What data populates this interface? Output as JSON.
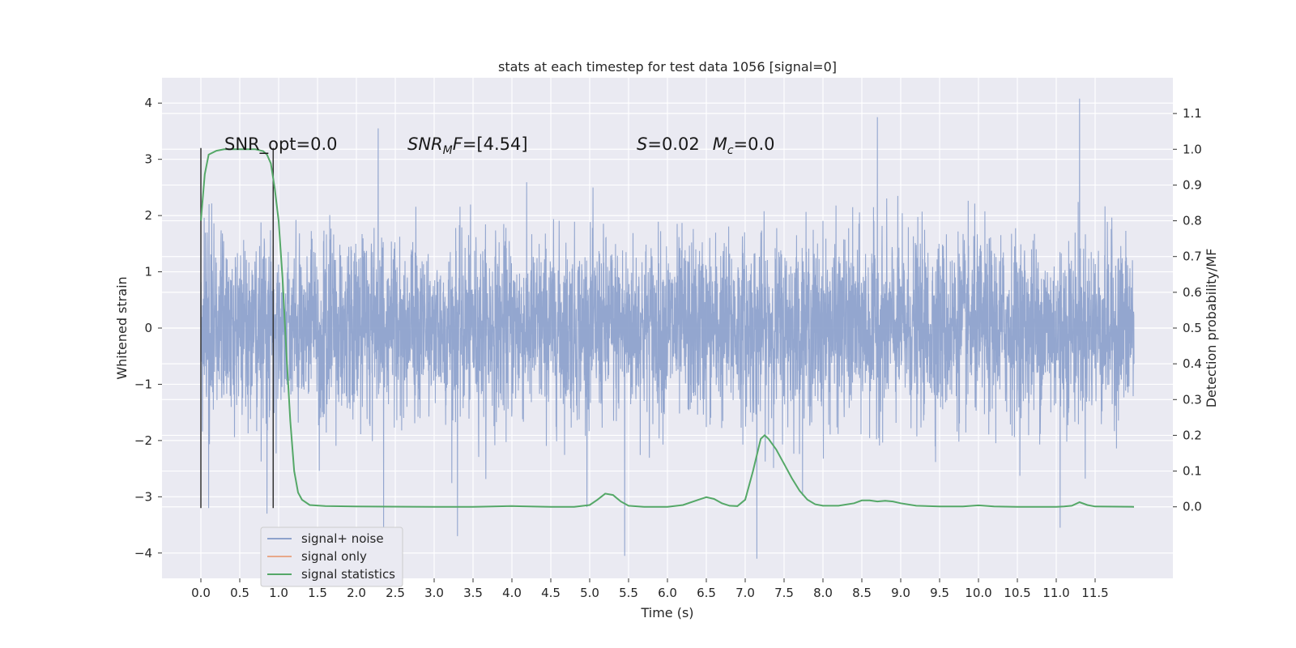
{
  "chart_data": {
    "type": "line",
    "title": "stats at each timestep for test data 1056 [signal=0]",
    "xlabel": "Time (s)",
    "ylabel": "Whitened strain",
    "y2label": "Detection probability/MF",
    "xlim": [
      -0.5,
      12.5
    ],
    "ylim": [
      -4.45,
      4.45
    ],
    "y2lim": [
      -0.2,
      1.2
    ],
    "x_ticks": [
      0.0,
      0.5,
      1.0,
      1.5,
      2.0,
      2.5,
      3.0,
      3.5,
      4.0,
      4.5,
      5.0,
      5.5,
      6.0,
      6.5,
      7.0,
      7.5,
      8.0,
      8.5,
      9.0,
      9.5,
      10.0,
      10.5,
      11.0,
      11.5
    ],
    "x_tick_labels": [
      "0.0",
      "0.5",
      "1.0",
      "1.5",
      "2.0",
      "2.5",
      "3.0",
      "3.5",
      "4.0",
      "4.5",
      "5.0",
      "5.5",
      "6.0",
      "6.5",
      "7.0",
      "7.5",
      "8.0",
      "8.5",
      "9.0",
      "9.5",
      "10.0",
      "10.5",
      "11.0",
      "11.5"
    ],
    "y_ticks": [
      -4,
      -3,
      -2,
      -1,
      0,
      1,
      2,
      3,
      4
    ],
    "y_tick_labels": [
      "−4",
      "−3",
      "−2",
      "−1",
      "0",
      "1",
      "2",
      "3",
      "4"
    ],
    "y2_ticks": [
      0.0,
      0.1,
      0.2,
      0.3,
      0.4,
      0.5,
      0.6,
      0.7,
      0.8,
      0.9,
      1.0,
      1.1
    ],
    "y2_tick_labels": [
      "0.0",
      "0.1",
      "0.2",
      "0.3",
      "0.4",
      "0.5",
      "0.6",
      "0.7",
      "0.8",
      "0.9",
      "1.0",
      "1.1"
    ],
    "grid": true,
    "legend_position": "lower-left",
    "series": [
      {
        "name": "signal+ noise",
        "axis": "left",
        "color": "#8ea2cc",
        "x_range": [
          0.0,
          12.0
        ],
        "typical_envelope": [
          -1.9,
          1.9
        ],
        "extreme_excursions": [
          {
            "x": 0.1,
            "y": -3.2
          },
          {
            "x": 0.85,
            "y": -3.3
          },
          {
            "x": 2.28,
            "y": 3.55
          },
          {
            "x": 2.35,
            "y": -3.6
          },
          {
            "x": 3.3,
            "y": -3.7
          },
          {
            "x": 5.45,
            "y": -4.05
          },
          {
            "x": 7.15,
            "y": -4.1
          },
          {
            "x": 8.7,
            "y": 3.75
          },
          {
            "x": 11.3,
            "y": 4.08
          },
          {
            "x": 11.05,
            "y": -3.55
          }
        ]
      },
      {
        "name": "signal only",
        "axis": "left",
        "color": "#e8a88a",
        "x": [],
        "y": []
      },
      {
        "name": "signal statistics",
        "axis": "right",
        "color": "#55a868",
        "x": [
          0.0,
          0.05,
          0.1,
          0.2,
          0.3,
          0.5,
          0.7,
          0.8,
          0.85,
          0.9,
          0.95,
          1.0,
          1.05,
          1.1,
          1.15,
          1.2,
          1.25,
          1.3,
          1.4,
          1.6,
          2.0,
          3.0,
          3.5,
          4.0,
          4.5,
          4.8,
          5.0,
          5.1,
          5.2,
          5.3,
          5.4,
          5.5,
          5.7,
          6.0,
          6.2,
          6.4,
          6.5,
          6.6,
          6.7,
          6.8,
          6.9,
          7.0,
          7.1,
          7.2,
          7.25,
          7.3,
          7.4,
          7.5,
          7.6,
          7.7,
          7.8,
          7.9,
          8.0,
          8.2,
          8.4,
          8.5,
          8.6,
          8.7,
          8.8,
          8.9,
          9.0,
          9.2,
          9.5,
          9.8,
          10.0,
          10.2,
          10.5,
          11.0,
          11.1,
          11.2,
          11.3,
          11.4,
          11.5,
          12.0
        ],
        "y": [
          0.8,
          0.93,
          0.985,
          0.996,
          1.0,
          1.0,
          1.0,
          0.995,
          0.985,
          0.96,
          0.89,
          0.8,
          0.64,
          0.43,
          0.24,
          0.1,
          0.04,
          0.02,
          0.005,
          0.002,
          0.001,
          0.0,
          0.0,
          0.002,
          0.0,
          0.0,
          0.005,
          0.02,
          0.037,
          0.033,
          0.015,
          0.003,
          0.0,
          0.0,
          0.005,
          0.02,
          0.027,
          0.022,
          0.01,
          0.003,
          0.002,
          0.02,
          0.1,
          0.19,
          0.2,
          0.19,
          0.16,
          0.12,
          0.08,
          0.045,
          0.02,
          0.007,
          0.003,
          0.003,
          0.01,
          0.018,
          0.018,
          0.015,
          0.017,
          0.015,
          0.01,
          0.003,
          0.001,
          0.001,
          0.004,
          0.001,
          0.0,
          0.0,
          0.001,
          0.003,
          0.013,
          0.005,
          0.001,
          0.0
        ]
      }
    ],
    "vertical_lines": [
      {
        "x": 0.0,
        "y": [
          -3.2,
          3.2
        ],
        "color": "#333333"
      },
      {
        "x": 0.93,
        "y": [
          -3.2,
          3.2
        ],
        "color": "#333333"
      }
    ],
    "annotations": [
      {
        "id": "snr-opt",
        "text": "SNR_opt=0.0"
      },
      {
        "id": "snr-mf",
        "text": "SNR_MF=[4.54]"
      },
      {
        "id": "s-mc",
        "text": "S=0.02   M_c=0.0"
      }
    ]
  }
}
